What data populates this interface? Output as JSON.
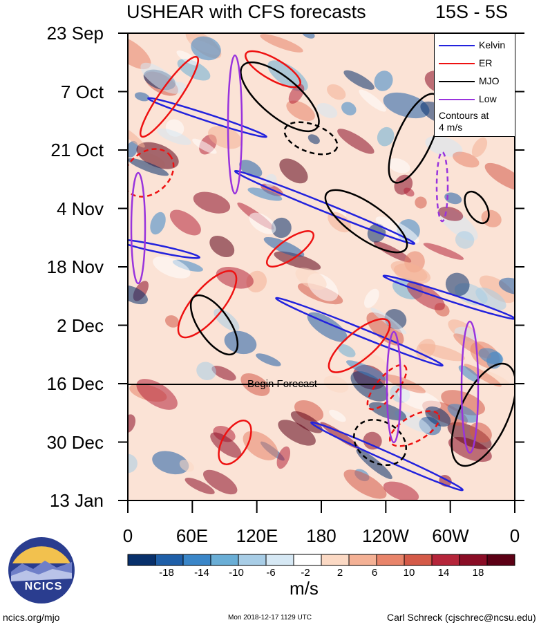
{
  "header": {
    "title": "USHEAR with CFS forecasts",
    "region": "15S - 5S"
  },
  "legend": {
    "items": [
      {
        "label": "Kelvin",
        "color": "#2222dd"
      },
      {
        "label": "ER",
        "color": "#ee1111"
      },
      {
        "label": "MJO",
        "color": "#000000"
      },
      {
        "label": "Low",
        "color": "#9933dd"
      }
    ],
    "contour_note_line1": "Contours at",
    "contour_note_line2": "4 m/s"
  },
  "annotation": {
    "begin_forecast": "Begin Forecast"
  },
  "colorbar": {
    "units": "m/s",
    "tick_labels": [
      "-18",
      "-14",
      "-10",
      "-6",
      "-2",
      "2",
      "6",
      "10",
      "14",
      "18"
    ],
    "colors": [
      "#08306b",
      "#1f5fa8",
      "#3a86c8",
      "#6aaed6",
      "#a8cde6",
      "#d6e8f4",
      "#ffffff",
      "#fbd9c4",
      "#f4b195",
      "#e8846a",
      "#d45a48",
      "#b5253a",
      "#8a0d26",
      "#5c0015"
    ]
  },
  "footer": {
    "left": "ncics.org/mjo",
    "middle": "Mon 2018-12-17 1129 UTC",
    "right": "Carl Schreck (cjschrec@ncsu.edu)",
    "logo_text": "NCICS"
  },
  "chart_data": {
    "type": "heatmap",
    "title": "USHEAR with CFS forecasts",
    "subtitle": "15S - 5S",
    "xlabel": "",
    "ylabel": "",
    "x_tick_labels": [
      "0",
      "60E",
      "120E",
      "180",
      "120W",
      "60W",
      "0"
    ],
    "x_ticks_deg": [
      0,
      60,
      120,
      180,
      240,
      300,
      360
    ],
    "xlim": [
      0,
      360
    ],
    "y_tick_labels": [
      "23 Sep",
      "7 Oct",
      "21 Oct",
      "4 Nov",
      "18 Nov",
      "2 Dec",
      "16 Dec",
      "30 Dec",
      "13 Jan"
    ],
    "y_ticks_day": [
      0,
      14,
      28,
      42,
      56,
      70,
      84,
      98,
      112
    ],
    "ylim": [
      0,
      112
    ],
    "forecast_start_day": 84,
    "colorbar_units": "m/s",
    "contour_interval_ms": 4,
    "series": [
      {
        "name": "Kelvin",
        "color": "#2222dd"
      },
      {
        "name": "ER",
        "color": "#ee1111"
      },
      {
        "name": "MJO",
        "color": "#000000"
      },
      {
        "name": "Low",
        "color": "#9933dd"
      }
    ]
  }
}
